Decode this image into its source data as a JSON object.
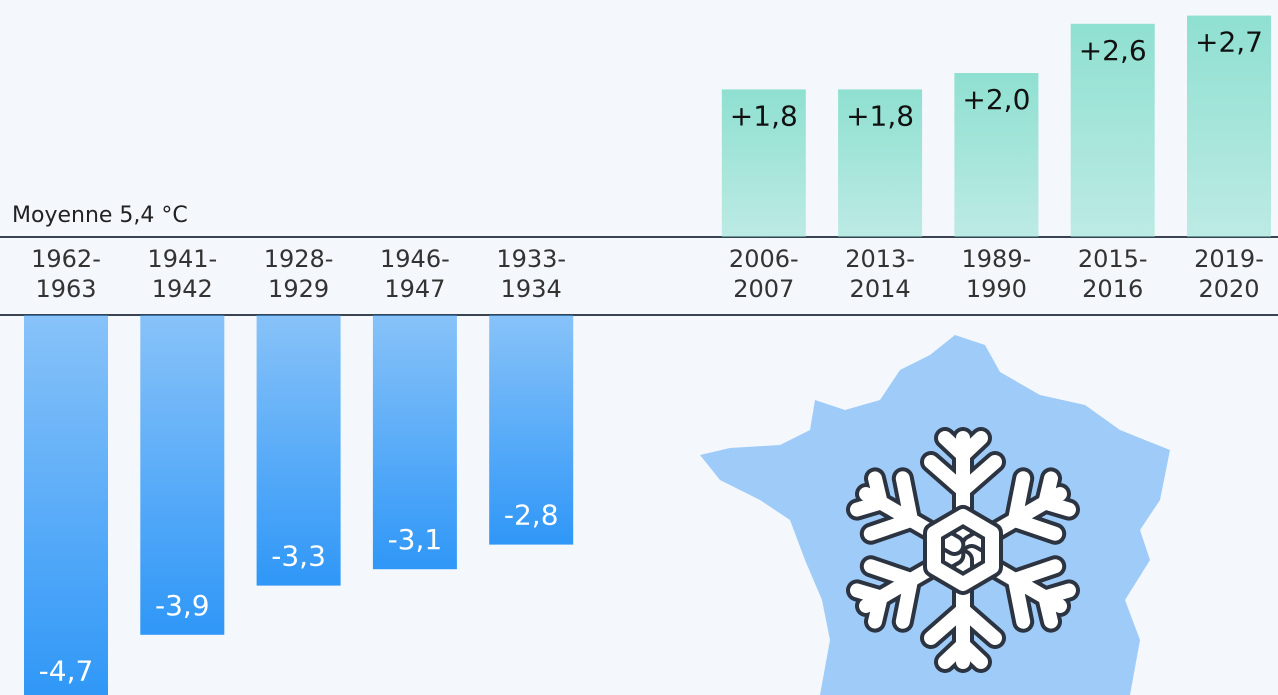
{
  "chart_data": {
    "type": "bar",
    "annotation": "Moyenne 5,4 °C",
    "categories": [
      "1962-\n1963",
      "1941-\n1942",
      "1928-\n1929",
      "1946-\n1947",
      "1933-\n1934",
      "2006-\n2007",
      "2013-\n2014",
      "1989-\n1990",
      "2015-\n2016",
      "2019-\n2020"
    ],
    "values": [
      -4.7,
      -3.9,
      -3.3,
      -3.1,
      -2.8,
      1.8,
      1.8,
      2.0,
      2.6,
      2.7
    ],
    "value_labels": [
      "-4,7",
      "-3,9",
      "-3,3",
      "-3,1",
      "-2,8",
      "+1,8",
      "+1,8",
      "+2,0",
      "+2,6",
      "+2,7"
    ],
    "color_below": "#2f97f7",
    "color_above": "#8fe0d1"
  }
}
